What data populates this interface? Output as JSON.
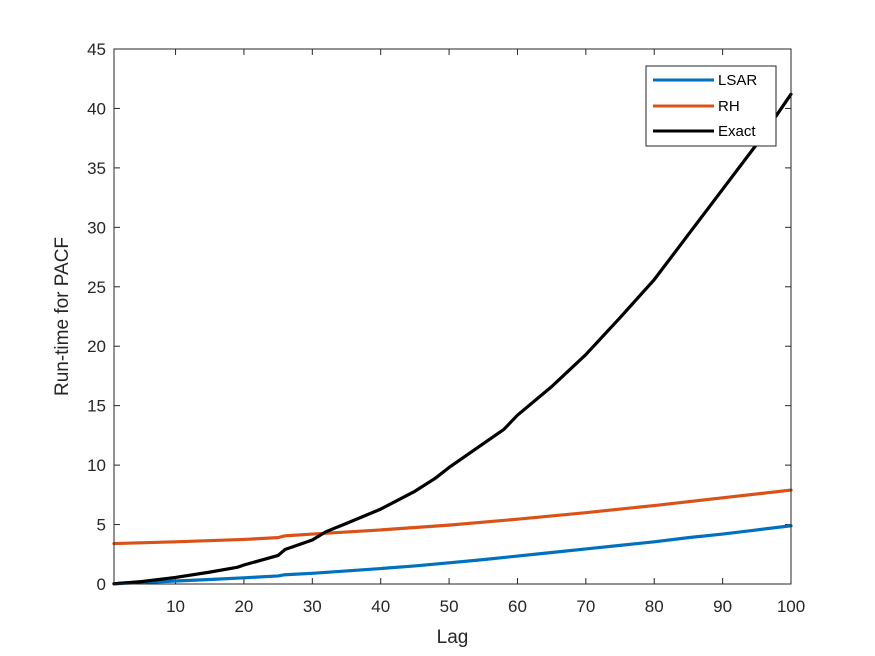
{
  "chart_data": {
    "type": "line",
    "title": "",
    "xlabel": "Lag",
    "ylabel": "Run-time for PACF",
    "xlim": [
      1,
      100
    ],
    "ylim": [
      0,
      45
    ],
    "xticks": [
      10,
      20,
      30,
      40,
      50,
      60,
      70,
      80,
      90,
      100
    ],
    "yticks": [
      0,
      5,
      10,
      15,
      20,
      25,
      30,
      35,
      40,
      45
    ],
    "grid": false,
    "legend_position": "top-right",
    "series": [
      {
        "name": "LSAR",
        "color": "#0072BD",
        "x": [
          1,
          5,
          10,
          15,
          20,
          25,
          26,
          30,
          35,
          40,
          45,
          50,
          55,
          60,
          65,
          70,
          75,
          80,
          85,
          90,
          95,
          100
        ],
        "y": [
          0.02,
          0.12,
          0.25,
          0.38,
          0.52,
          0.68,
          0.78,
          0.9,
          1.1,
          1.3,
          1.52,
          1.78,
          2.05,
          2.35,
          2.65,
          2.95,
          3.25,
          3.55,
          3.9,
          4.2,
          4.55,
          4.9
        ]
      },
      {
        "name": "RH",
        "color": "#D95319",
        "x": [
          1,
          10,
          20,
          25,
          26,
          30,
          40,
          50,
          60,
          70,
          80,
          90,
          100
        ],
        "y": [
          3.4,
          3.55,
          3.75,
          3.9,
          4.05,
          4.2,
          4.55,
          4.95,
          5.45,
          6.0,
          6.6,
          7.25,
          7.9
        ]
      },
      {
        "name": "Exact",
        "color": "#000000",
        "x": [
          1,
          5,
          10,
          15,
          19,
          20,
          25,
          26,
          30,
          32,
          35,
          40,
          45,
          48,
          50,
          55,
          58,
          60,
          65,
          70,
          75,
          80,
          85,
          90,
          95,
          100
        ],
        "y": [
          0.02,
          0.2,
          0.55,
          1.0,
          1.4,
          1.6,
          2.4,
          2.9,
          3.7,
          4.4,
          5.1,
          6.3,
          7.8,
          8.9,
          9.8,
          11.8,
          13.0,
          14.2,
          16.6,
          19.3,
          22.4,
          25.6,
          29.4,
          33.2,
          37.0,
          41.2
        ]
      }
    ]
  }
}
